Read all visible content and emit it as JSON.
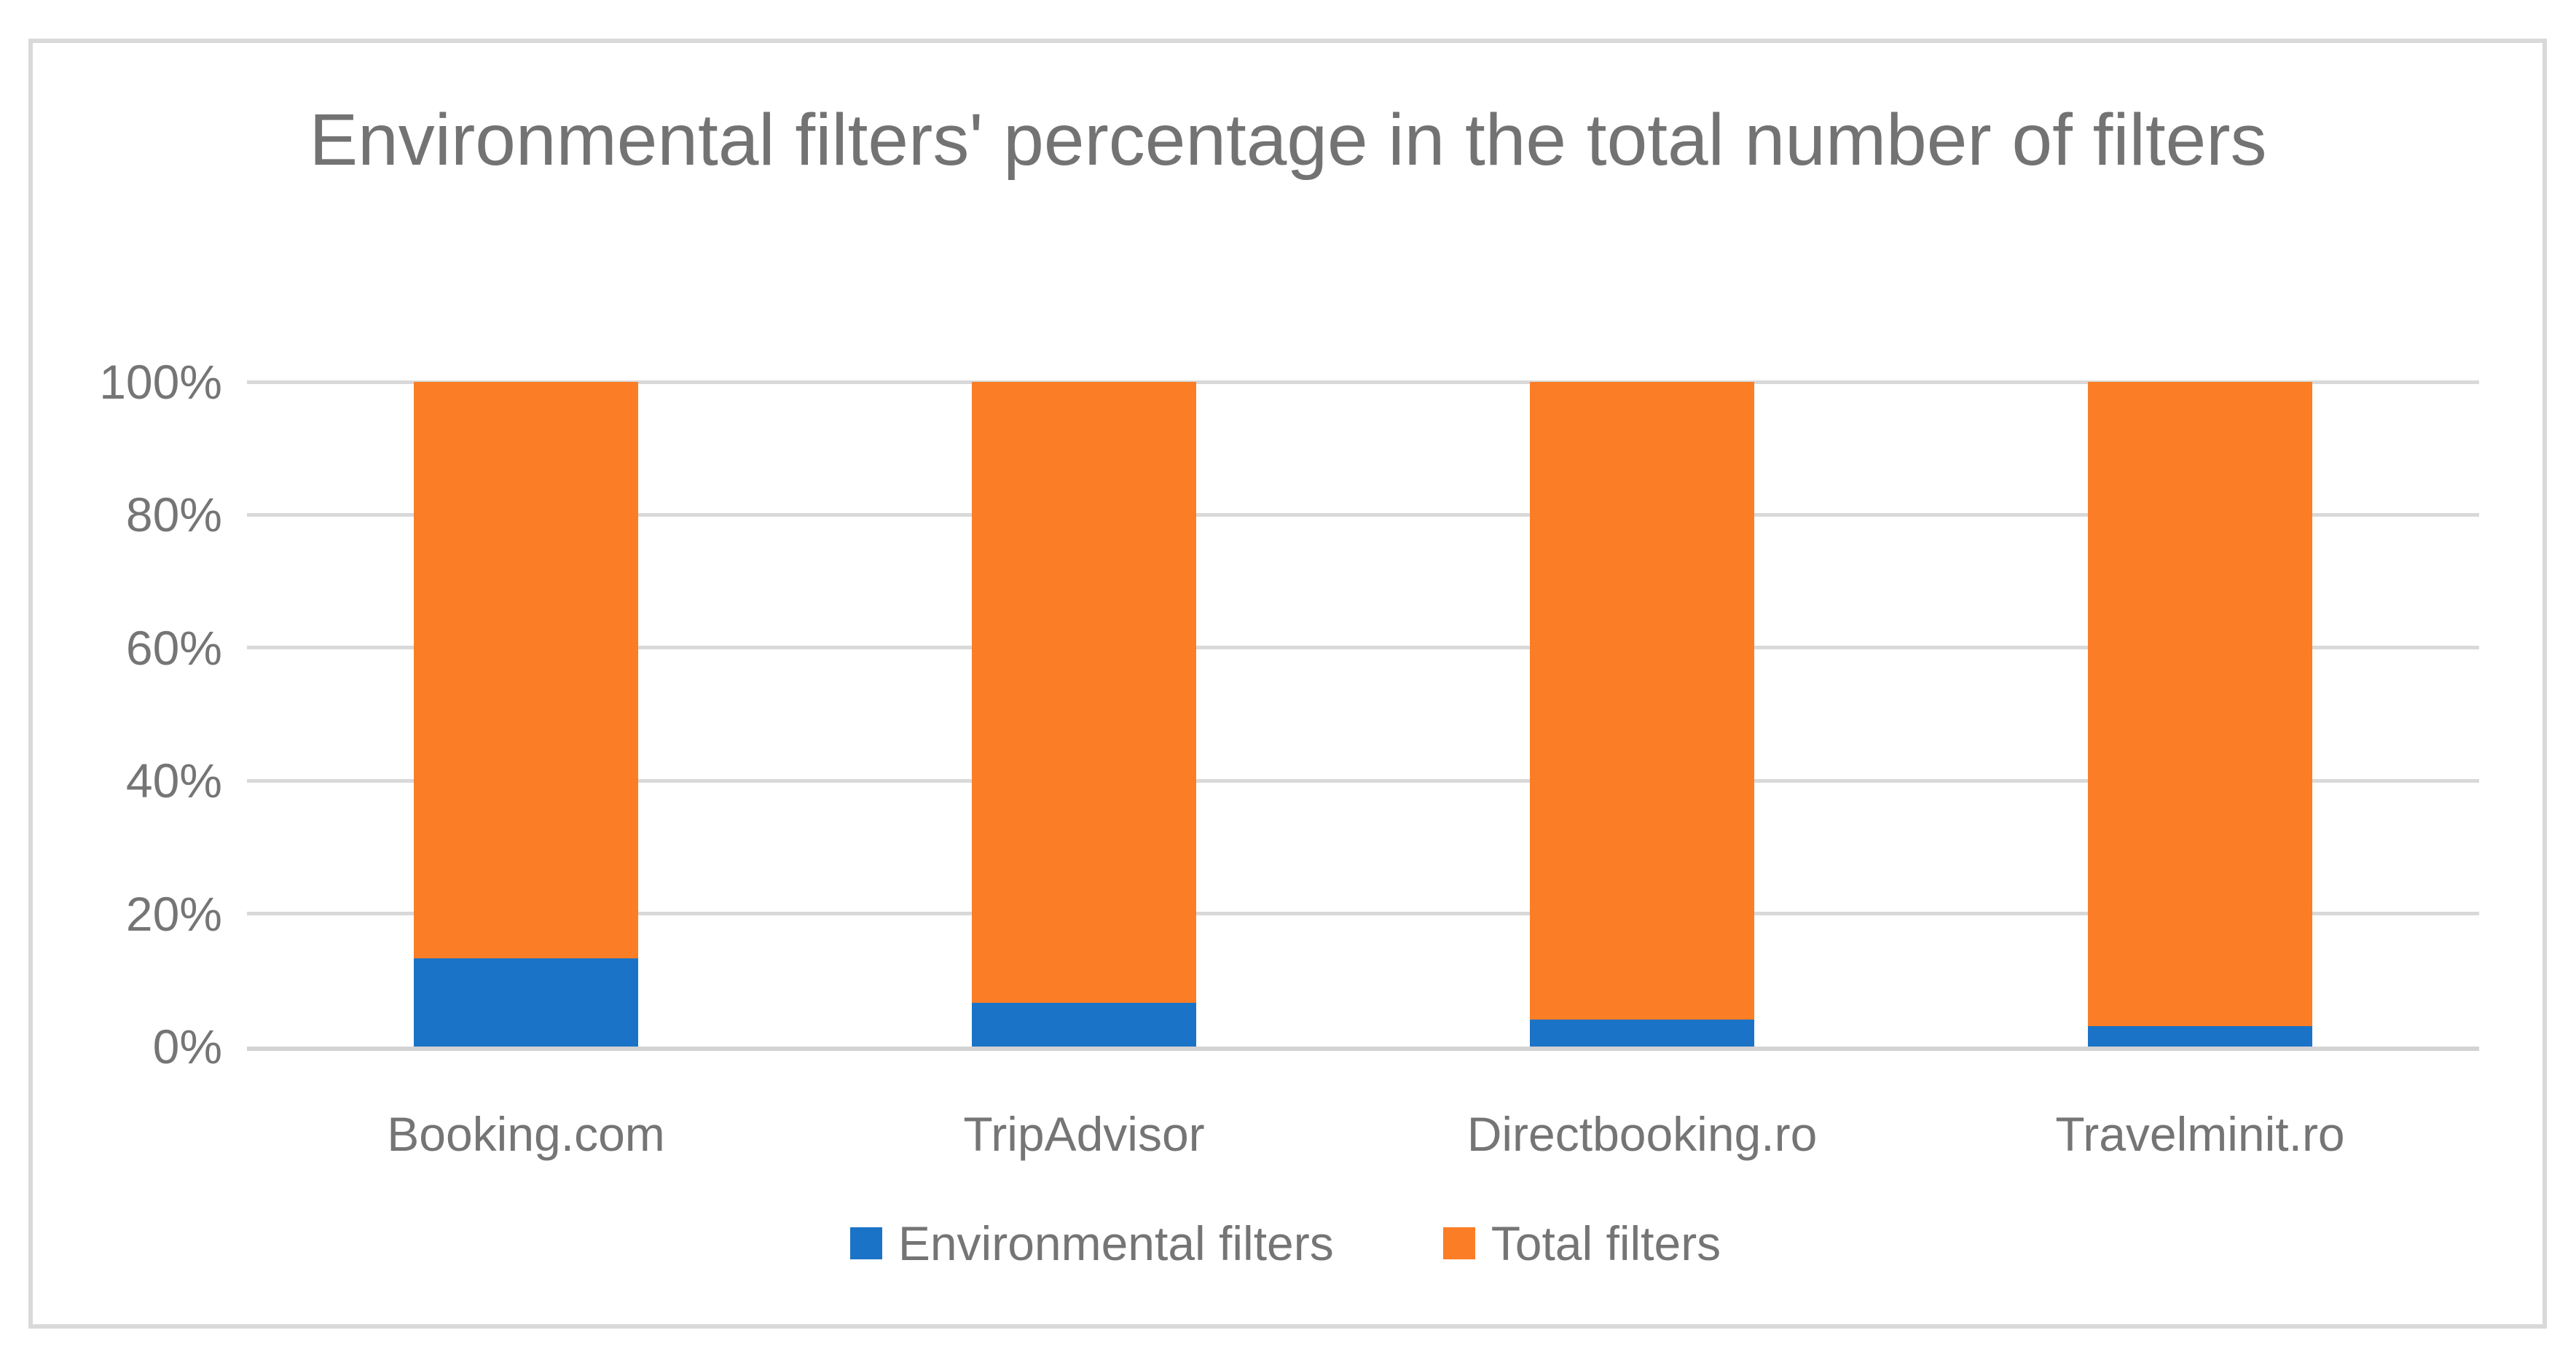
{
  "chart_data": {
    "type": "bar",
    "variant": "stacked-100",
    "title": "Environmental filters' percentage in the total number of filters",
    "categories": [
      "Booking.com",
      "TripAdvisor",
      "Directbooking.ro",
      "Travelminit.ro"
    ],
    "series": [
      {
        "name": "Environmental filters",
        "color": "#1B73C7",
        "values": [
          13.3,
          6.6,
          4.1,
          3.1
        ]
      },
      {
        "name": "Total filters",
        "color": "#FB7D26",
        "values": [
          86.7,
          93.4,
          95.9,
          96.9
        ]
      }
    ],
    "xlabel": "",
    "ylabel": "",
    "ylim": [
      0,
      100
    ],
    "y_ticks": [
      "0%",
      "20%",
      "40%",
      "60%",
      "80%",
      "100%"
    ],
    "grid": true,
    "gridline_color": "#D9D9D9",
    "axis_line_color": "#D3D3D3",
    "text_color": "#757575",
    "title_color": "#737373",
    "legend_position": "bottom",
    "legend_items": [
      {
        "label": "Environmental filters",
        "color": "#1B73C7"
      },
      {
        "label": "Total filters",
        "color": "#FB7D26"
      }
    ]
  }
}
